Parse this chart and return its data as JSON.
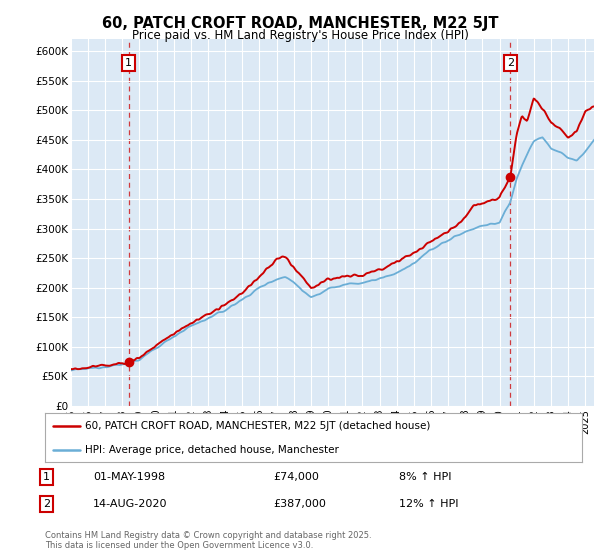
{
  "title": "60, PATCH CROFT ROAD, MANCHESTER, M22 5JT",
  "subtitle": "Price paid vs. HM Land Registry's House Price Index (HPI)",
  "legend_line1": "60, PATCH CROFT ROAD, MANCHESTER, M22 5JT (detached house)",
  "legend_line2": "HPI: Average price, detached house, Manchester",
  "annotation1_date": "01-MAY-1998",
  "annotation1_price": "£74,000",
  "annotation1_hpi": "8% ↑ HPI",
  "annotation1_year": 1998.37,
  "annotation1_value": 74000,
  "annotation2_date": "14-AUG-2020",
  "annotation2_price": "£387,000",
  "annotation2_hpi": "12% ↑ HPI",
  "annotation2_year": 2020.62,
  "annotation2_value": 387000,
  "ymin": 0,
  "ymax": 620000,
  "xmin": 1995,
  "xmax": 2025.5,
  "plot_bg_color": "#dce9f5",
  "hpi_color": "#6baed6",
  "price_color": "#cc0000",
  "footer_text": "Contains HM Land Registry data © Crown copyright and database right 2025.\nThis data is licensed under the Open Government Licence v3.0.",
  "yticks": [
    0,
    50000,
    100000,
    150000,
    200000,
    250000,
    300000,
    350000,
    400000,
    450000,
    500000,
    550000,
    600000
  ],
  "ytick_labels": [
    "£0",
    "£50K",
    "£100K",
    "£150K",
    "£200K",
    "£250K",
    "£300K",
    "£350K",
    "£400K",
    "£450K",
    "£500K",
    "£550K",
    "£600K"
  ]
}
